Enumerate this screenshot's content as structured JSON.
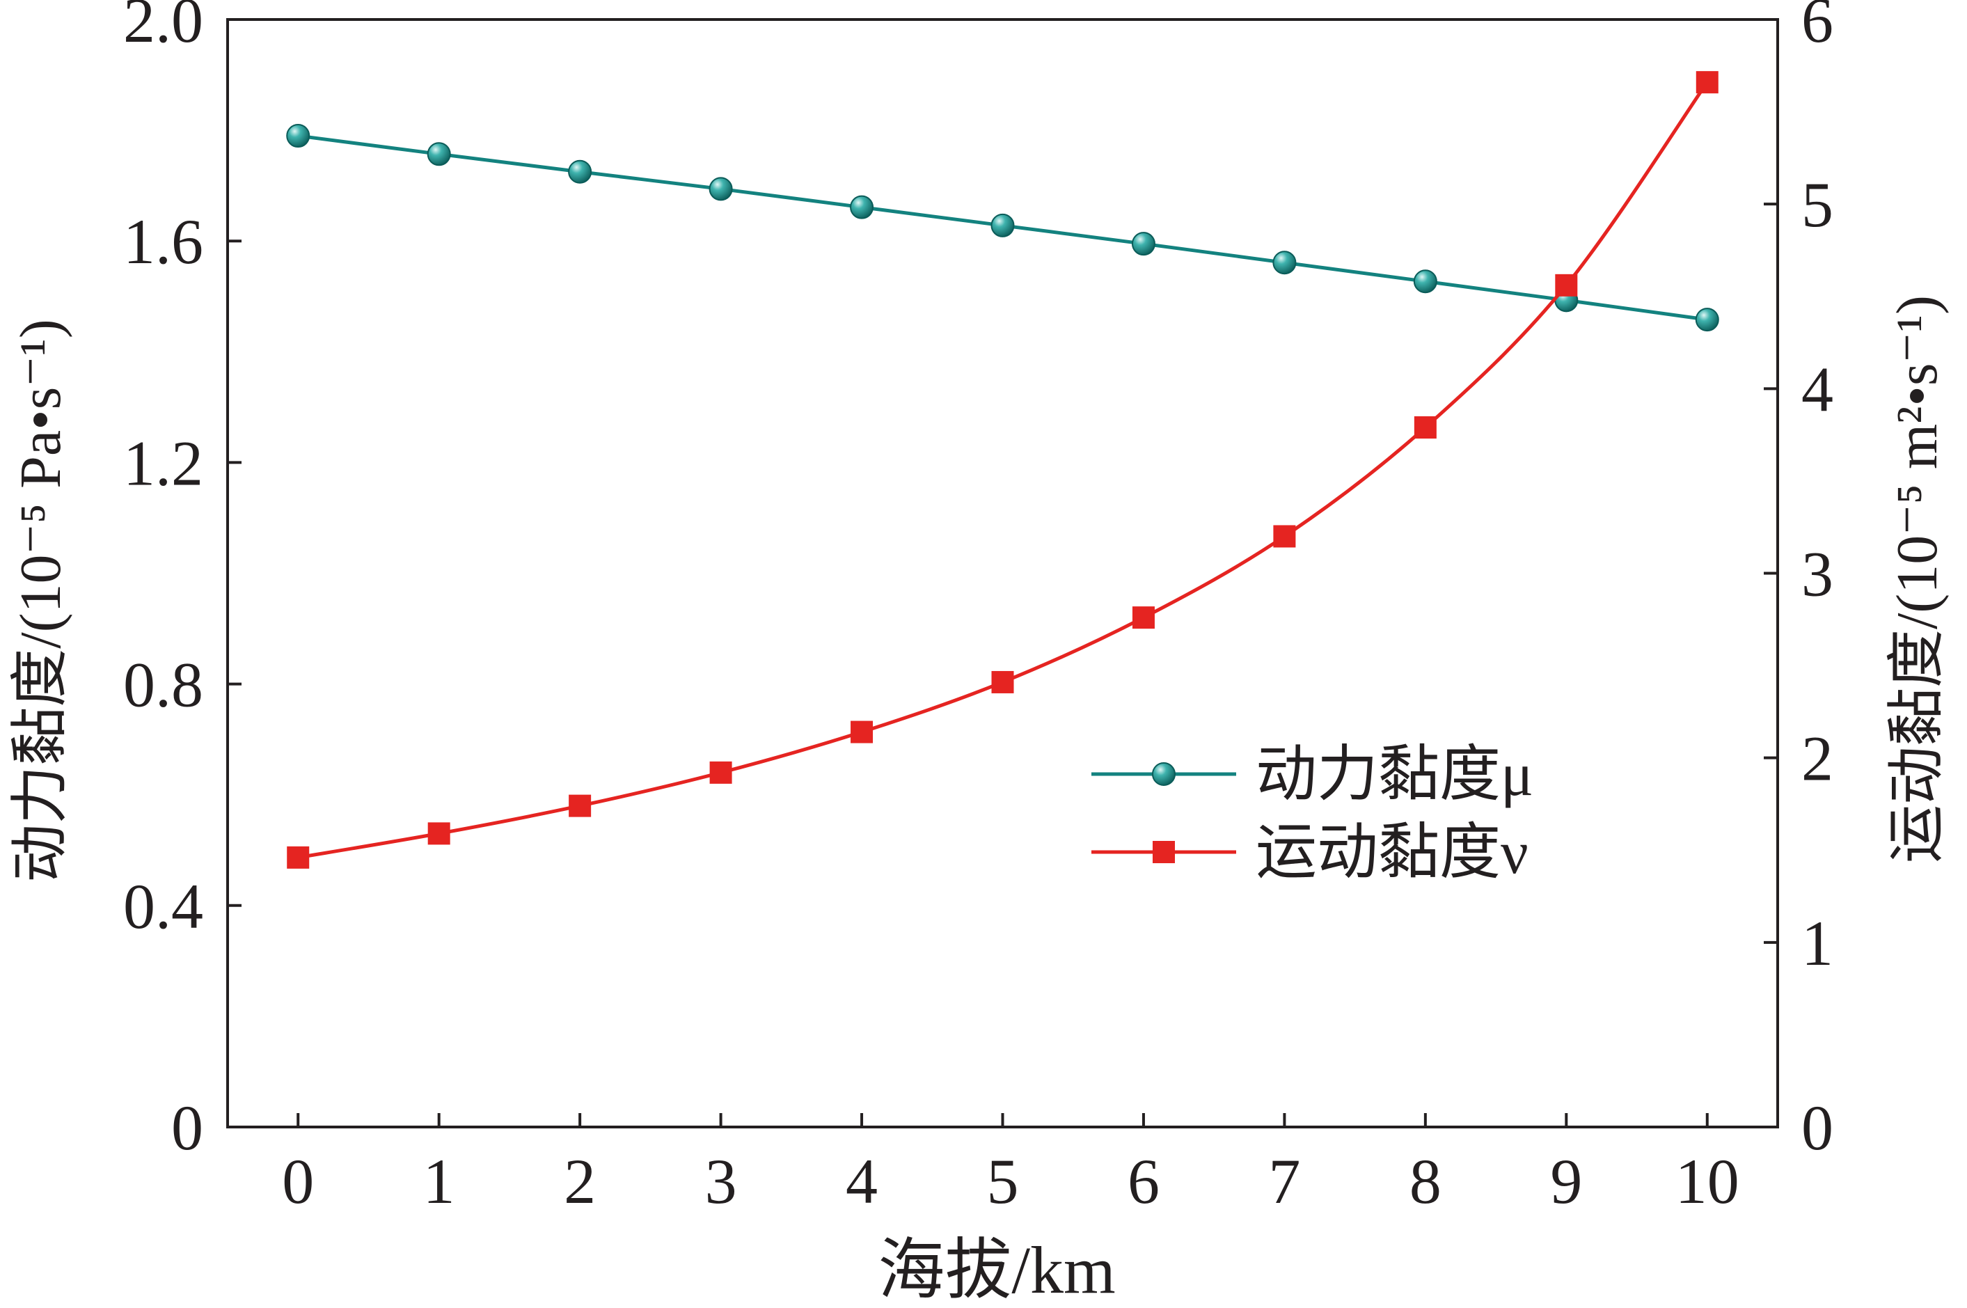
{
  "chart_data": {
    "type": "line",
    "xlabel": "海拔/km",
    "ylabel_left": "动力黏度/(10⁻⁵ Pa•s⁻¹)",
    "ylabel_right": "运动黏度/(10⁻⁵ m²•s⁻¹)",
    "x": [
      0,
      1,
      2,
      3,
      4,
      5,
      6,
      7,
      8,
      9,
      10
    ],
    "x_ticks": [
      "0",
      "1",
      "2",
      "3",
      "4",
      "5",
      "6",
      "7",
      "8",
      "9",
      "10"
    ],
    "xlim": [
      -0.5,
      10.5
    ],
    "ylim_left": [
      0,
      2.0
    ],
    "ylim_right": [
      0,
      6
    ],
    "y_ticks_left": [
      "0",
      "0.4",
      "0.8",
      "1.2",
      "1.6",
      "2.0"
    ],
    "y_ticks_right": [
      "0",
      "1",
      "2",
      "3",
      "4",
      "5",
      "6"
    ],
    "grid": false,
    "legend_position": "center-right",
    "series": [
      {
        "name": "动力黏度μ",
        "axis": "left",
        "marker": "circle",
        "color": "#13827f",
        "values": [
          1.79,
          1.757,
          1.725,
          1.694,
          1.661,
          1.628,
          1.595,
          1.561,
          1.527,
          1.493,
          1.458
        ]
      },
      {
        "name": "运动黏度ν",
        "axis": "right",
        "marker": "square",
        "color": "#e52421",
        "values": [
          1.46,
          1.59,
          1.74,
          1.92,
          2.14,
          2.41,
          2.76,
          3.2,
          3.79,
          4.56,
          5.66
        ]
      }
    ]
  }
}
